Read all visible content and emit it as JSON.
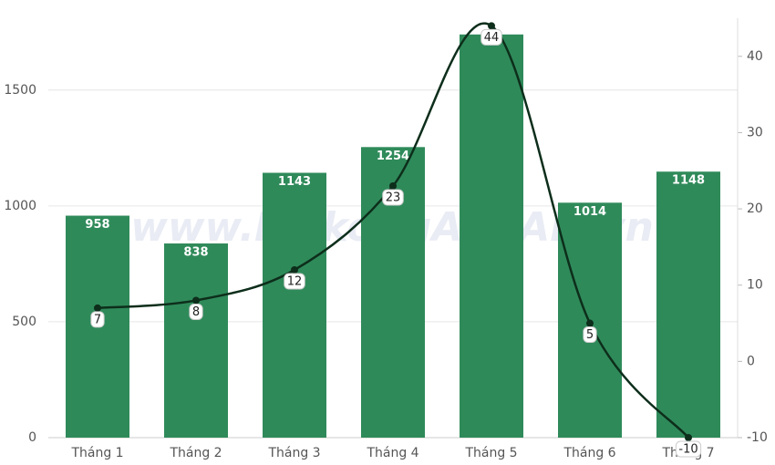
{
  "chart_data": {
    "type": "bar-line",
    "watermark": "www.MekongASEAN.vn",
    "categories": [
      "Tháng 1",
      "Tháng 2",
      "Tháng 3",
      "Tháng 4",
      "Tháng 5",
      "Tháng 6",
      "Tháng 7"
    ],
    "series": [
      {
        "type": "bar",
        "color": "#2f8a5a",
        "values": [
          958,
          838,
          1143,
          1254,
          1740,
          1014,
          1148
        ],
        "value_labels": [
          "958",
          "838",
          "1143",
          "1254",
          null,
          "1014",
          "1148"
        ]
      },
      {
        "type": "line",
        "axis": "y2",
        "color": "#0d2e1b",
        "values": [
          7,
          8,
          12,
          23,
          44,
          5,
          -10
        ]
      }
    ],
    "ylim": [
      0,
      1810
    ],
    "yticks": [
      0,
      500,
      1000,
      1500
    ],
    "y2lim": [
      -10,
      45
    ],
    "y2ticks": [
      -10,
      0,
      10,
      20,
      30,
      40
    ],
    "grid": true
  }
}
